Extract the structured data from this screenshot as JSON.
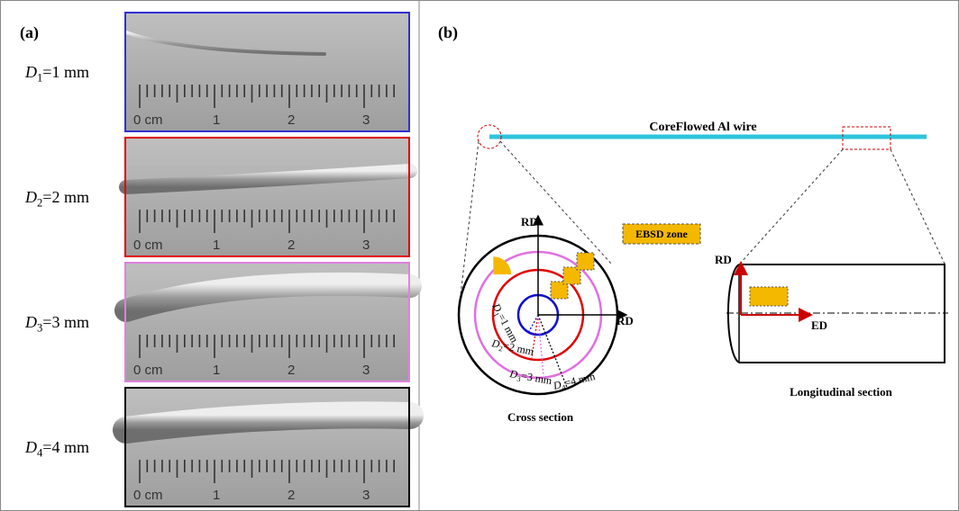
{
  "panel_a": {
    "label": "(a)",
    "rows": [
      {
        "var": "D",
        "sub": "1",
        "rest": "=1 mm",
        "ruler": [
          "0 cm",
          "1",
          "2",
          "3"
        ]
      },
      {
        "var": "D",
        "sub": "2",
        "rest": "=2 mm",
        "ruler": [
          "0 cm",
          "1",
          "2",
          "3"
        ]
      },
      {
        "var": "D",
        "sub": "3",
        "rest": "=3 mm",
        "ruler": [
          "0 cm",
          "1",
          "2",
          "3"
        ]
      },
      {
        "var": "D",
        "sub": "4",
        "rest": "=4 mm",
        "ruler": [
          "0 cm",
          "1",
          "2",
          "3"
        ]
      }
    ]
  },
  "panel_b": {
    "label": "(b)",
    "wire_label": "CoreFlowed Al wire",
    "legend": "EBSD zone",
    "cross": {
      "axis_v": "RD",
      "axis_h": "RD",
      "caption": "Cross section",
      "radii": [
        {
          "var": "D",
          "sub": "1",
          "rest": "=1 mm"
        },
        {
          "var": "D",
          "sub": "2",
          "rest": "=2 mm"
        },
        {
          "var": "D",
          "sub": "3",
          "rest": "=3 mm"
        },
        {
          "var": "D",
          "sub": "4",
          "rest": "=4 mm"
        }
      ]
    },
    "longitudinal": {
      "axis_v": "RD",
      "axis_h": "ED",
      "caption": "Longitudinal section"
    }
  }
}
